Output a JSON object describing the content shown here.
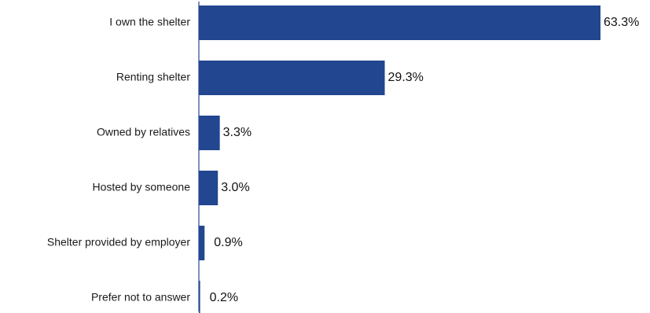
{
  "chart_data": {
    "type": "bar",
    "orientation": "horizontal",
    "title": "",
    "xlabel": "",
    "ylabel": "",
    "categories": [
      "I own the shelter",
      "Renting shelter",
      "Owned by relatives",
      "Hosted by someone",
      "Shelter provided by employer",
      "Prefer not to answer"
    ],
    "values": [
      63.3,
      29.3,
      3.3,
      3.0,
      0.9,
      0.2
    ],
    "value_labels": [
      "63.3%",
      "29.3%",
      "3.3%",
      "3.0%",
      "0.9%",
      "0.2%"
    ],
    "unit": "%",
    "xlim": [
      0,
      63.3
    ],
    "grid": false,
    "legend": "none",
    "bar_color": "#22468f",
    "axis_color": "#22468f"
  }
}
